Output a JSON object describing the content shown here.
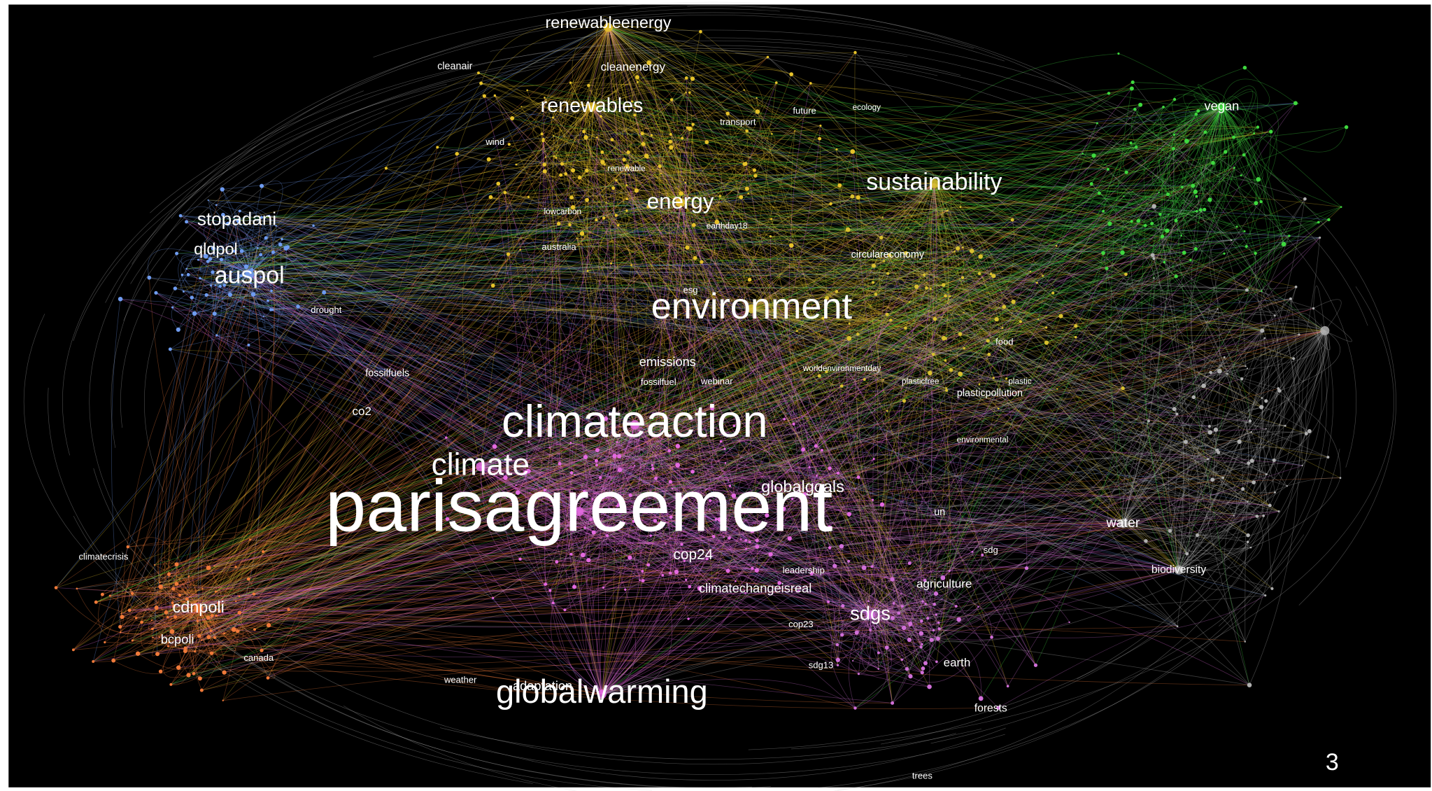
{
  "labels": [
    "renewableenergy",
    "cleanair",
    "cleanenergy",
    "renewables",
    "transport",
    "future",
    "ecology",
    "wind",
    "renewable",
    "vegan",
    "sustainability",
    "energy",
    "stopadani",
    "lowcarbon",
    "earthday18",
    "qldpol",
    "australia",
    "circulareconomy",
    "auspol",
    "esg",
    "environment",
    "drought",
    "food",
    "emissions",
    "worldenvironmentday",
    "fossilfuels",
    "fossilfuel",
    "webinar",
    "plasticfree",
    "plastic",
    "plasticpollution",
    "co2",
    "climateaction",
    "environmental",
    "climate",
    "globalgoals",
    "parisagreement",
    "un",
    "water",
    "sdg",
    "climatecrisis",
    "cop24",
    "biodiversity",
    "leadership",
    "agriculture",
    "climatechangeisreal",
    "cdnpoli",
    "sdgs",
    "cop23",
    "bcpoli",
    "canada",
    "earth",
    "sdg13",
    "weather",
    "adaptation",
    "globalwarming",
    "forests",
    "trees"
  ],
  "page_number": "3"
}
